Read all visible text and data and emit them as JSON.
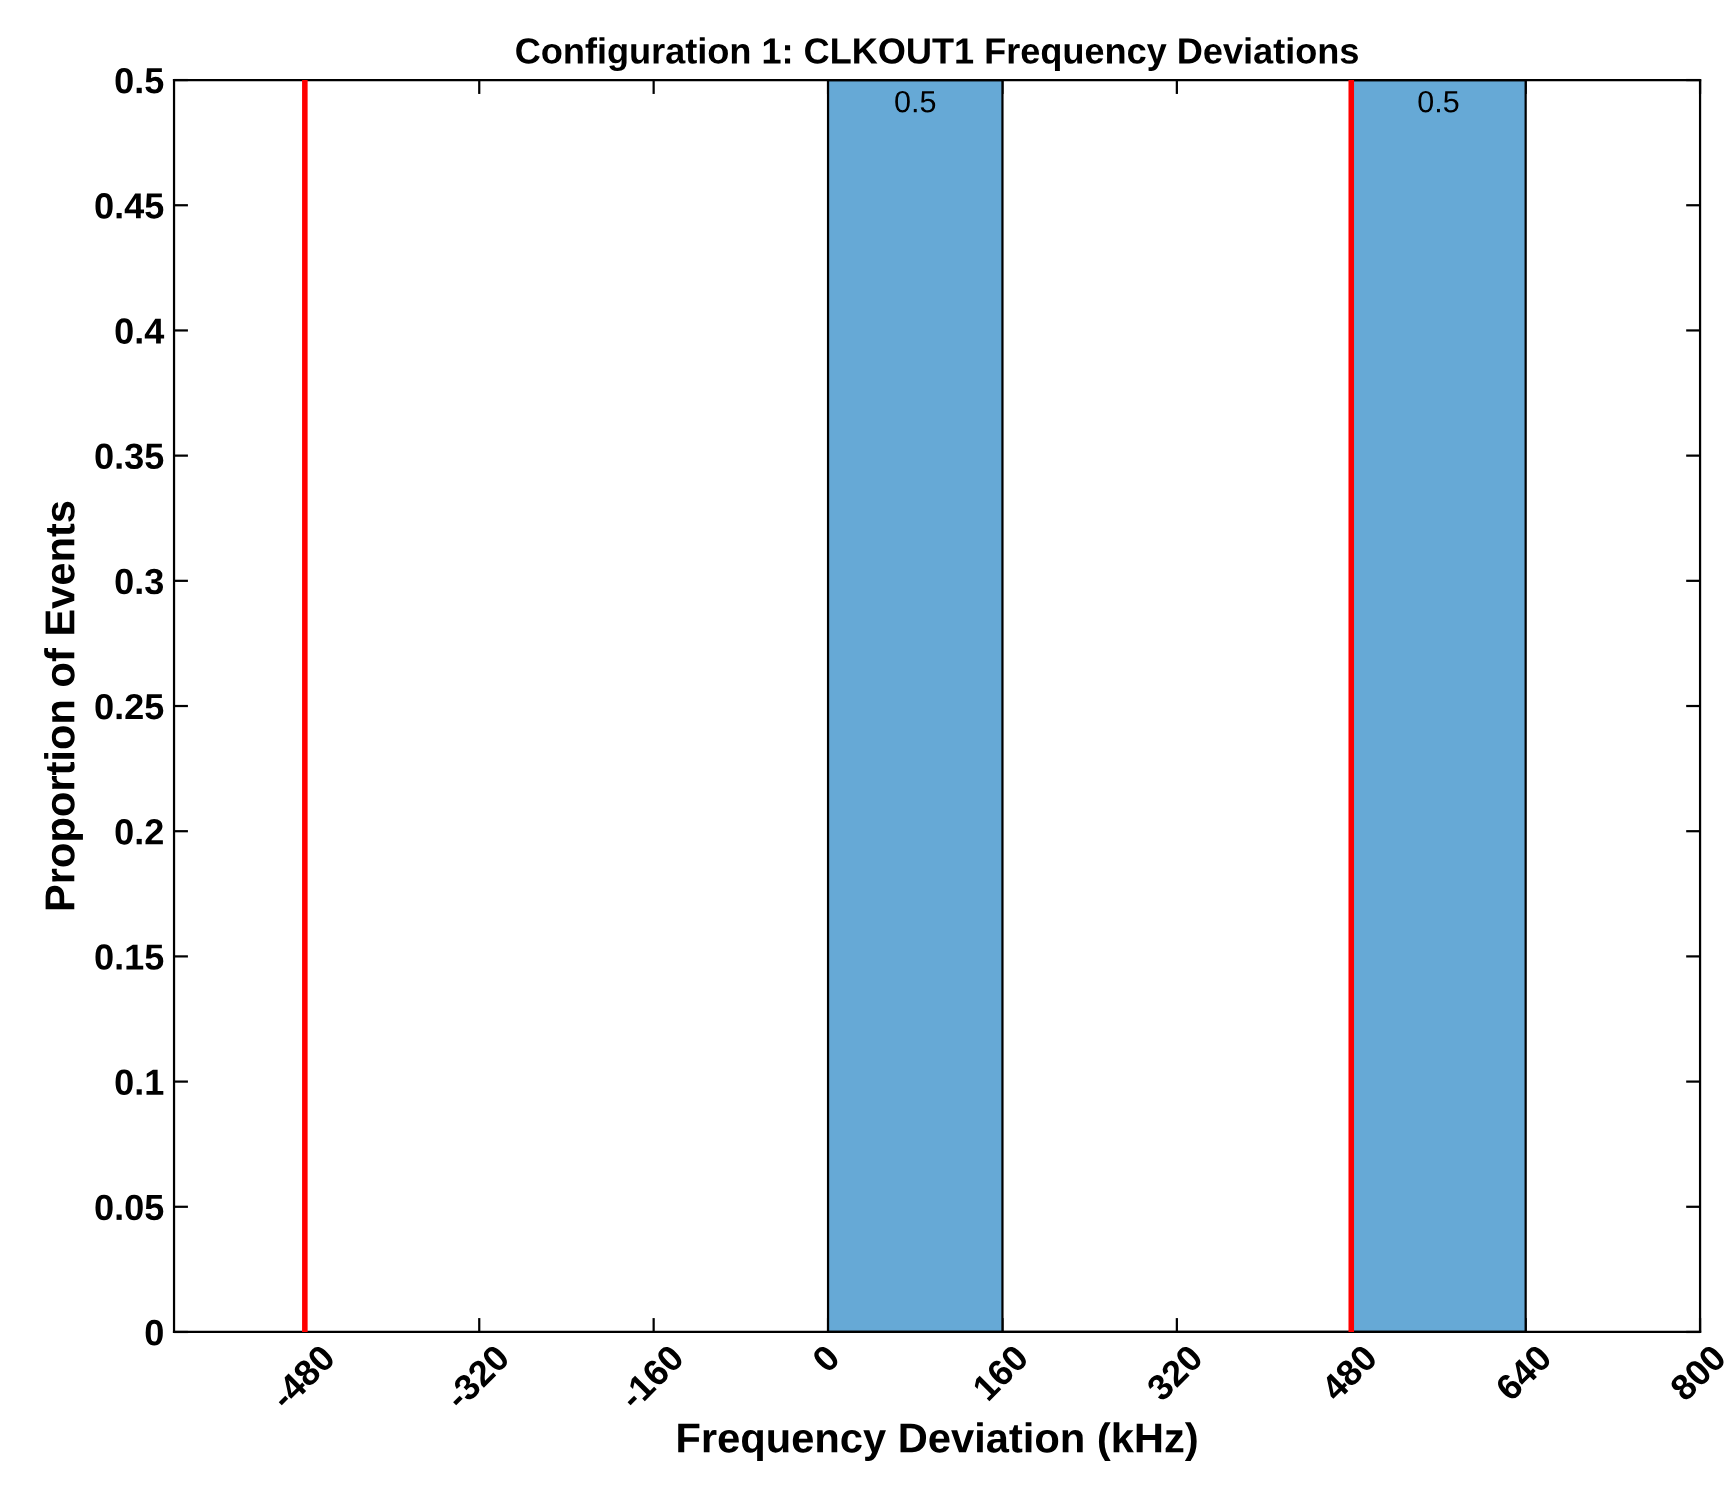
{
  "chart_data": {
    "type": "histogram",
    "title": "Configuration 1: CLKOUT1 Frequency Deviations",
    "xlabel": "Frequency Deviation (kHz)",
    "ylabel": "Proportion of Events",
    "bins": [
      0,
      160,
      320,
      480,
      640
    ],
    "values": [
      0.5,
      0,
      0,
      0.5
    ],
    "color": "#66a9d6",
    "value_labels": [
      "0.5",
      null,
      null,
      "0.5"
    ],
    "xlim": [
      -600,
      800
    ],
    "xticks": [
      -480,
      -320,
      -160,
      0,
      160,
      320,
      480,
      640,
      800
    ],
    "ylim": [
      0,
      0.5
    ],
    "yticks": [
      0,
      0.05,
      0.1,
      0.15,
      0.2,
      0.25,
      0.3,
      0.35,
      0.4,
      0.45,
      0.5
    ],
    "ref_lines": [
      {
        "axis": "x",
        "value": -480,
        "color": "#ff0000"
      },
      {
        "axis": "x",
        "value": 480,
        "color": "#ff0000"
      }
    ],
    "grid": false
  }
}
